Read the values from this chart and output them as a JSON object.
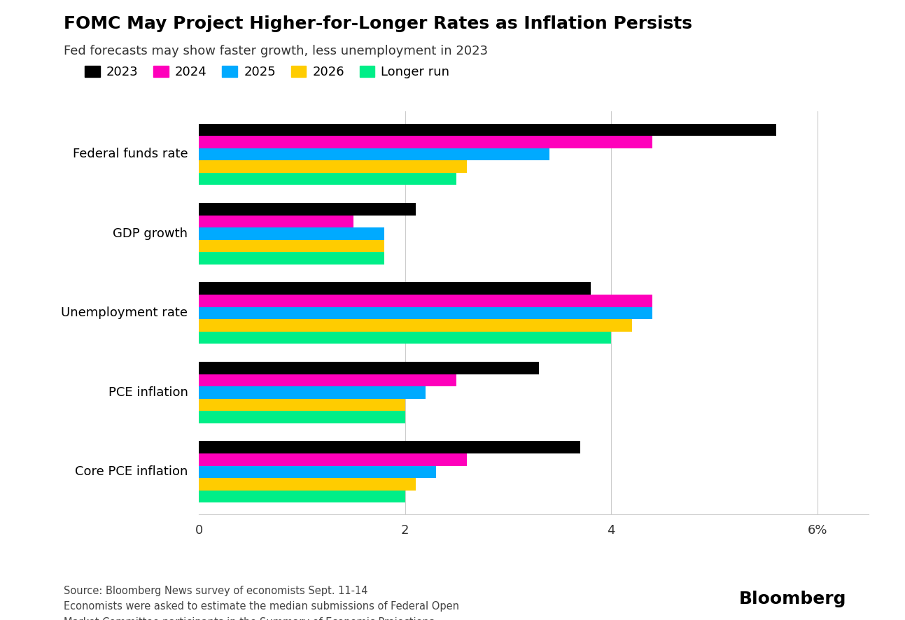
{
  "title": "FOMC May Project Higher-for-Longer Rates as Inflation Persists",
  "subtitle": "Fed forecasts may show faster growth, less unemployment in 2023",
  "categories": [
    "Federal funds rate",
    "GDP growth",
    "Unemployment rate",
    "PCE inflation",
    "Core PCE inflation"
  ],
  "series_labels": [
    "2023",
    "2024",
    "2025",
    "2026",
    "Longer run"
  ],
  "series_colors": [
    "#000000",
    "#FF00BB",
    "#00AAFF",
    "#FFCC00",
    "#00EE88"
  ],
  "values": {
    "Federal funds rate": [
      5.6,
      4.4,
      3.4,
      2.6,
      2.5
    ],
    "GDP growth": [
      2.1,
      1.5,
      1.8,
      1.8,
      1.8
    ],
    "Unemployment rate": [
      3.8,
      4.4,
      4.4,
      4.2,
      4.0
    ],
    "PCE inflation": [
      3.3,
      2.5,
      2.2,
      2.0,
      2.0
    ],
    "Core PCE inflation": [
      3.7,
      2.6,
      2.3,
      2.1,
      2.0
    ]
  },
  "xlim": [
    0,
    6.5
  ],
  "xticks": [
    0,
    2,
    4,
    6
  ],
  "xtick_labels": [
    "0",
    "2",
    "4",
    "6%"
  ],
  "background_color": "#FFFFFF",
  "source_line1": "Source: Bloomberg News survey of economists Sept. 11-14",
  "source_line2": "Economists were asked to estimate the median submissions of Federal Open",
  "source_line3": "Market Committee participants in the Summary of Economic Projections."
}
